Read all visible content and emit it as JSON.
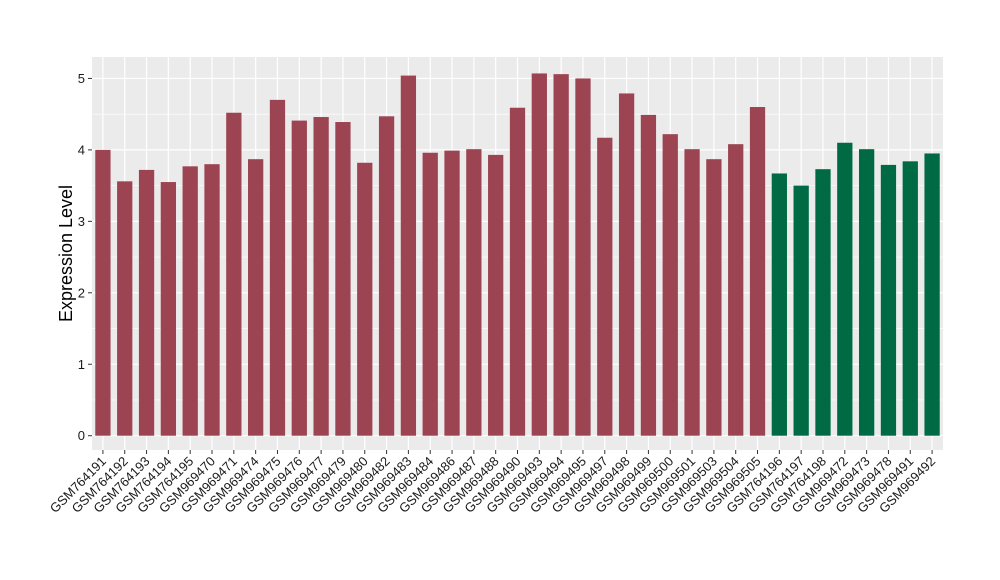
{
  "chart_data": {
    "type": "bar",
    "xlabel": "",
    "ylabel": "Expression Level",
    "ylim": [
      -0.2,
      5.3
    ],
    "yticks": [
      0,
      1,
      2,
      3,
      4,
      5
    ],
    "grid": true,
    "background": "#EBEBEB",
    "gridline_color": "#FFFFFF",
    "colors": {
      "group_a": "#9C4452",
      "group_b": "#006A45"
    },
    "categories": [
      "GSM764191",
      "GSM764192",
      "GSM764193",
      "GSM764194",
      "GSM764195",
      "GSM969470",
      "GSM969471",
      "GSM969474",
      "GSM969475",
      "GSM969476",
      "GSM969477",
      "GSM969479",
      "GSM969480",
      "GSM969482",
      "GSM969483",
      "GSM969484",
      "GSM969486",
      "GSM969487",
      "GSM969488",
      "GSM969490",
      "GSM969493",
      "GSM969494",
      "GSM969495",
      "GSM969497",
      "GSM969498",
      "GSM969499",
      "GSM969500",
      "GSM969501",
      "GSM969503",
      "GSM969504",
      "GSM969505",
      "GSM764196",
      "GSM764197",
      "GSM764198",
      "GSM969472",
      "GSM969473",
      "GSM969478",
      "GSM969491",
      "GSM969492"
    ],
    "values": [
      4.0,
      3.56,
      3.72,
      3.55,
      3.77,
      3.8,
      4.52,
      3.87,
      4.7,
      4.41,
      4.46,
      4.39,
      3.82,
      4.47,
      5.04,
      3.96,
      3.99,
      4.01,
      3.93,
      4.59,
      5.07,
      5.06,
      5.0,
      4.17,
      4.79,
      4.49,
      4.22,
      4.01,
      3.87,
      4.08,
      4.6,
      3.67,
      3.5,
      3.73,
      4.1,
      4.01,
      3.79,
      3.84,
      3.95
    ],
    "groups": [
      "a",
      "a",
      "a",
      "a",
      "a",
      "a",
      "a",
      "a",
      "a",
      "a",
      "a",
      "a",
      "a",
      "a",
      "a",
      "a",
      "a",
      "a",
      "a",
      "a",
      "a",
      "a",
      "a",
      "a",
      "a",
      "a",
      "a",
      "a",
      "a",
      "a",
      "a",
      "b",
      "b",
      "b",
      "b",
      "b",
      "b",
      "b",
      "b"
    ]
  }
}
